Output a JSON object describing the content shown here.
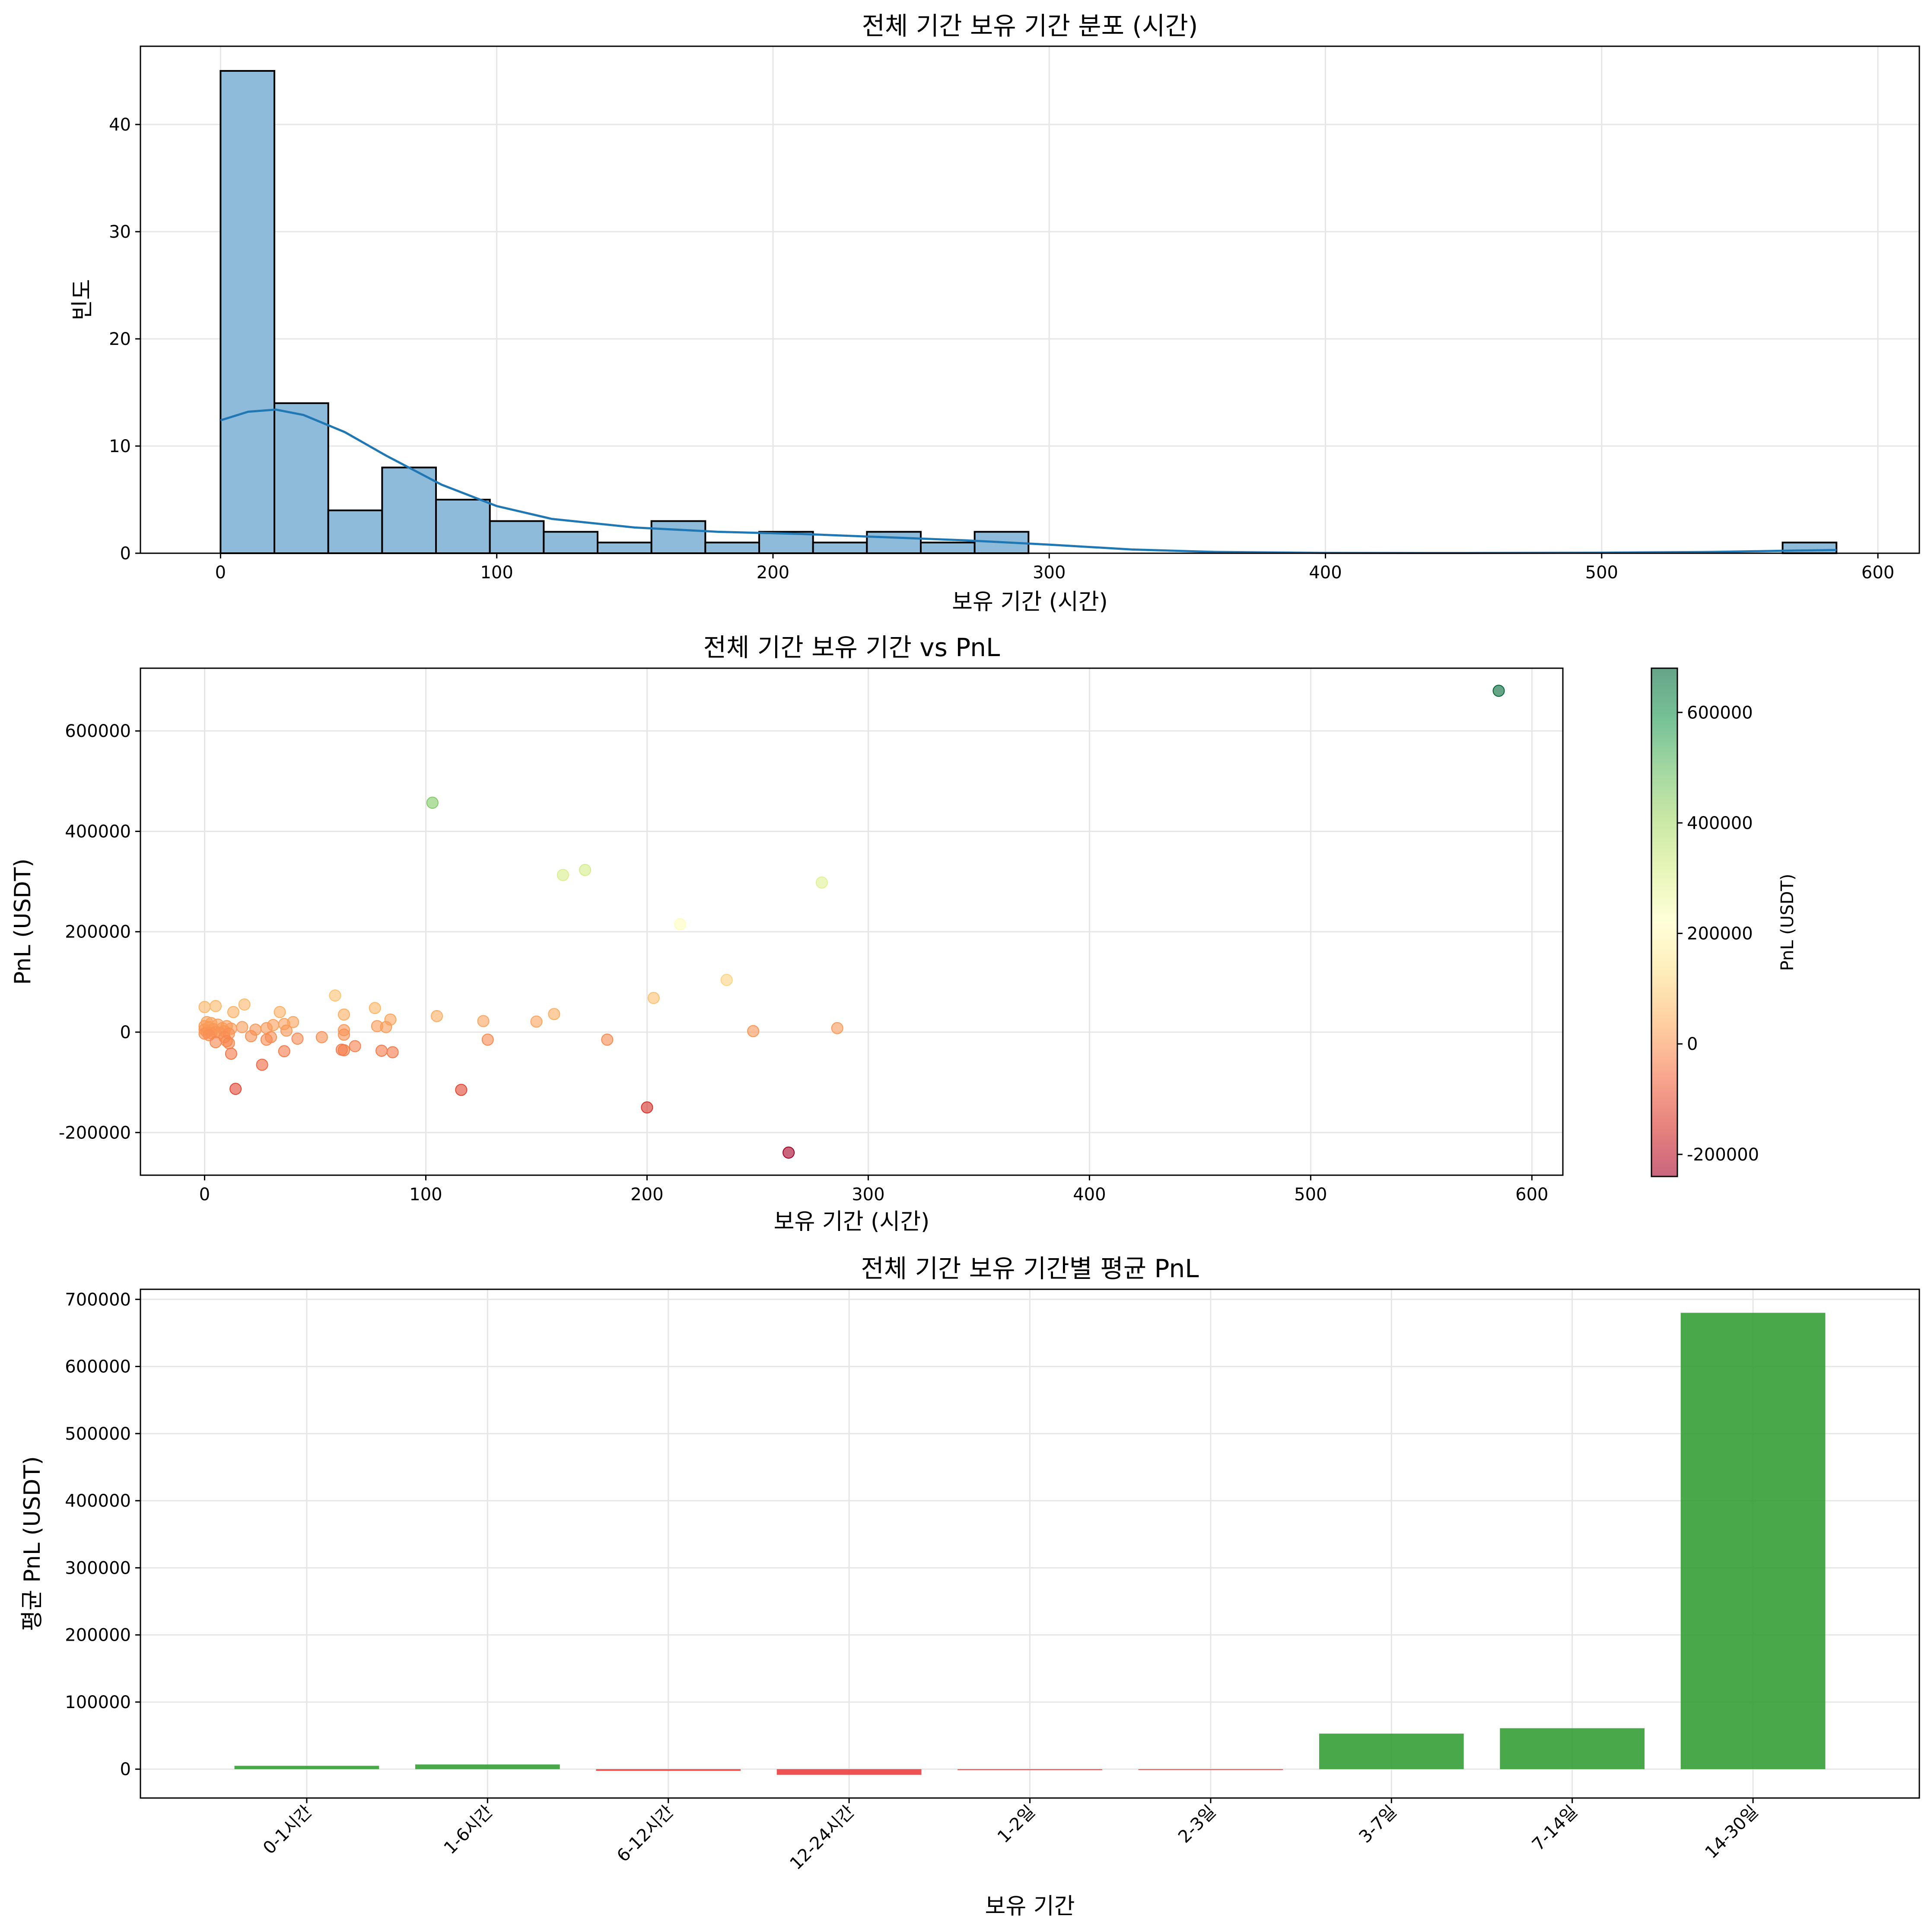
{
  "chart_data": [
    {
      "type": "histogram",
      "title": "전체 기간 보유 기간 분포 (시간)",
      "xlabel": "보유 기간 (시간)",
      "ylabel": "빈도",
      "xlim": [
        -29,
        615
      ],
      "ylim": [
        0,
        47.3
      ],
      "xticks": [
        0,
        100,
        200,
        300,
        400,
        500,
        600
      ],
      "yticks": [
        0,
        10,
        20,
        30,
        40
      ],
      "bin_width": 19.5,
      "bins_start": 0,
      "counts": [
        45,
        14,
        4,
        8,
        5,
        3,
        2,
        1,
        3,
        1,
        2,
        1,
        2,
        1,
        2,
        0,
        0,
        0,
        0,
        0,
        0,
        0,
        0,
        0,
        0,
        0,
        0,
        0,
        0,
        1
      ],
      "bar_color": "#8fbbdb",
      "kde": {
        "x": [
          0,
          10,
          20,
          30,
          45,
          60,
          80,
          100,
          120,
          150,
          180,
          210,
          240,
          270,
          300,
          330,
          360,
          400,
          450,
          500,
          540,
          570,
          585
        ],
        "y": [
          12.4,
          13.2,
          13.4,
          12.9,
          11.3,
          9.1,
          6.4,
          4.4,
          3.2,
          2.4,
          2.0,
          1.8,
          1.5,
          1.2,
          0.8,
          0.35,
          0.12,
          0.03,
          0.02,
          0.05,
          0.12,
          0.25,
          0.3
        ]
      },
      "kde_color": "#1f77b4"
    },
    {
      "type": "scatter",
      "title": "전체 기간 보유 기간 vs PnL",
      "xlabel": "보유 기간 (시간)",
      "ylabel": "PnL (USDT)",
      "xlim": [
        -29,
        614
      ],
      "ylim": [
        -285000,
        725000
      ],
      "xticks": [
        0,
        100,
        200,
        300,
        400,
        500,
        600
      ],
      "yticks": [
        -200000,
        0,
        200000,
        400000,
        600000
      ],
      "colorbar": {
        "label": "PnL (USDT)",
        "min": -240000,
        "max": 680000,
        "ticks": [
          -200000,
          0,
          200000,
          400000,
          600000
        ],
        "colormap": "RdYlGn",
        "alpha": 0.6
      },
      "points": [
        {
          "x": 585,
          "y": 680000
        },
        {
          "x": 103,
          "y": 457000
        },
        {
          "x": 172,
          "y": 323000
        },
        {
          "x": 162,
          "y": 313000
        },
        {
          "x": 279,
          "y": 298000
        },
        {
          "x": 215,
          "y": 215000
        },
        {
          "x": 236,
          "y": 104000
        },
        {
          "x": 203,
          "y": 68000
        },
        {
          "x": 59,
          "y": 73000
        },
        {
          "x": 18,
          "y": 55000
        },
        {
          "x": 5,
          "y": 52000
        },
        {
          "x": 0,
          "y": 50000
        },
        {
          "x": 77,
          "y": 48000
        },
        {
          "x": 34,
          "y": 40000
        },
        {
          "x": 13,
          "y": 40000
        },
        {
          "x": 158,
          "y": 36000
        },
        {
          "x": 63,
          "y": 35000
        },
        {
          "x": 105,
          "y": 32000
        },
        {
          "x": 84,
          "y": 25000
        },
        {
          "x": 126,
          "y": 22000
        },
        {
          "x": 150,
          "y": 21000
        },
        {
          "x": 40,
          "y": 20000
        },
        {
          "x": 1,
          "y": 20000
        },
        {
          "x": 3,
          "y": 18000
        },
        {
          "x": 36,
          "y": 16000
        },
        {
          "x": 6,
          "y": 15000
        },
        {
          "x": 31,
          "y": 14000
        },
        {
          "x": 10,
          "y": 12000
        },
        {
          "x": 0,
          "y": 12000
        },
        {
          "x": 78,
          "y": 12000
        },
        {
          "x": 2,
          "y": 10000
        },
        {
          "x": 17,
          "y": 10000
        },
        {
          "x": 82,
          "y": 10000
        },
        {
          "x": 28,
          "y": 8000
        },
        {
          "x": 286,
          "y": 8000
        },
        {
          "x": 8,
          "y": 8000
        },
        {
          "x": 12,
          "y": 7000
        },
        {
          "x": 4,
          "y": 6000
        },
        {
          "x": 0,
          "y": 5000
        },
        {
          "x": 23,
          "y": 5000
        },
        {
          "x": 63,
          "y": 4000
        },
        {
          "x": 37,
          "y": 3000
        },
        {
          "x": 9,
          "y": 2000
        },
        {
          "x": 248,
          "y": 2000
        },
        {
          "x": 1,
          "y": 0
        },
        {
          "x": 5,
          "y": 0
        },
        {
          "x": 7,
          "y": -1000
        },
        {
          "x": 3,
          "y": -2000
        },
        {
          "x": 11,
          "y": -3000
        },
        {
          "x": 0,
          "y": -3000
        },
        {
          "x": 63,
          "y": -5000
        },
        {
          "x": 2,
          "y": -6000
        },
        {
          "x": 21,
          "y": -8000
        },
        {
          "x": 30,
          "y": -10000
        },
        {
          "x": 9,
          "y": -10000
        },
        {
          "x": 53,
          "y": -10000
        },
        {
          "x": 42,
          "y": -13000
        },
        {
          "x": 28,
          "y": -15000
        },
        {
          "x": 128,
          "y": -15000
        },
        {
          "x": 182,
          "y": -15000
        },
        {
          "x": 10,
          "y": -18000
        },
        {
          "x": 5,
          "y": -20000
        },
        {
          "x": 11,
          "y": -22000
        },
        {
          "x": 68,
          "y": -28000
        },
        {
          "x": 62,
          "y": -35000
        },
        {
          "x": 63,
          "y": -36000
        },
        {
          "x": 80,
          "y": -37000
        },
        {
          "x": 36,
          "y": -38000
        },
        {
          "x": 85,
          "y": -40000
        },
        {
          "x": 12,
          "y": -43000
        },
        {
          "x": 26,
          "y": -65000
        },
        {
          "x": 14,
          "y": -113000
        },
        {
          "x": 116,
          "y": -115000
        },
        {
          "x": 200,
          "y": -150000
        },
        {
          "x": 264,
          "y": -240000
        }
      ]
    },
    {
      "type": "bar",
      "title": "전체 기간 보유 기간별 평균 PnL",
      "xlabel": "보유 기간",
      "ylabel": "평균 PnL (USDT)",
      "ylim": [
        -43000,
        715000
      ],
      "yticks": [
        0,
        100000,
        200000,
        300000,
        400000,
        500000,
        600000,
        700000
      ],
      "categories": [
        "0-1시간",
        "1-6시간",
        "6-12시간",
        "12-24시간",
        "1-2일",
        "2-3일",
        "3-7일",
        "7-14일",
        "14-30일"
      ],
      "values": [
        5000,
        7000,
        -2500,
        -8500,
        -1500,
        -500,
        53000,
        61000,
        680000
      ],
      "positive_color": "#2e9b2e",
      "negative_color": "#ea3a3a"
    }
  ]
}
